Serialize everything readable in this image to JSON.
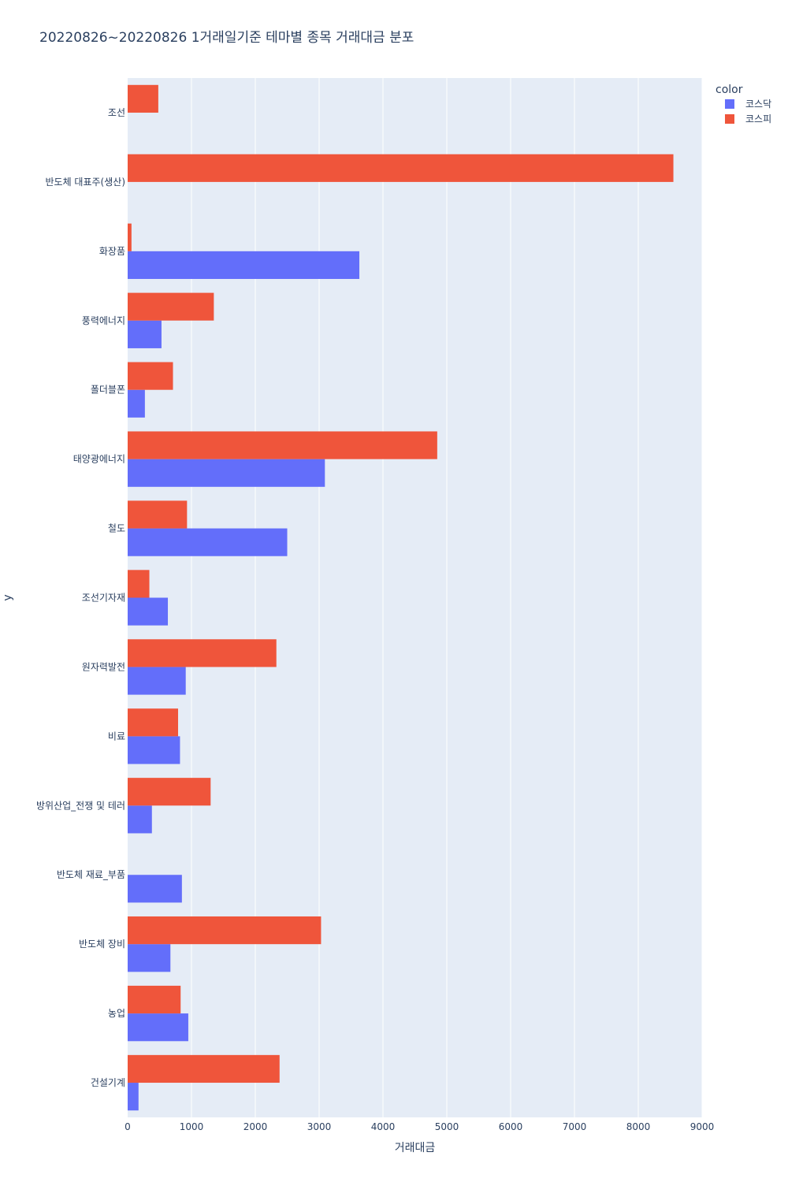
{
  "chart_data": {
    "type": "bar",
    "orientation": "horizontal",
    "barmode": "group",
    "title": "20220826~20220826 1거래일기준 테마별 종목 거래대금 분포",
    "xlabel": "거래대금",
    "ylabel": "y",
    "xlim": [
      0,
      9000
    ],
    "x_ticks": [
      "0",
      "1000",
      "2000",
      "3000",
      "4000",
      "5000",
      "6000",
      "7000",
      "8000",
      "9000"
    ],
    "grid": true,
    "legend_title": "color",
    "legend_position": "top-right",
    "categories": [
      "조선",
      "반도체 대표주(생산)",
      "화장품",
      "풍력에너지",
      "폴더블폰",
      "태양광에너지",
      "철도",
      "조선기자재",
      "원자력발전",
      "비료",
      "방위산업_전쟁 및 테러",
      "반도체 재료_부품",
      "반도체 장비",
      "농업",
      "건설기계"
    ],
    "series": [
      {
        "name": "코스닥",
        "color": "#636efa",
        "values": [
          null,
          null,
          3630,
          530,
          270,
          3090,
          2500,
          630,
          910,
          820,
          380,
          850,
          670,
          950,
          170
        ]
      },
      {
        "name": "코스피",
        "color": "#ef553b",
        "values": [
          480,
          8550,
          60,
          1350,
          710,
          4850,
          930,
          340,
          2330,
          790,
          1300,
          null,
          3030,
          830,
          2380
        ]
      }
    ]
  }
}
